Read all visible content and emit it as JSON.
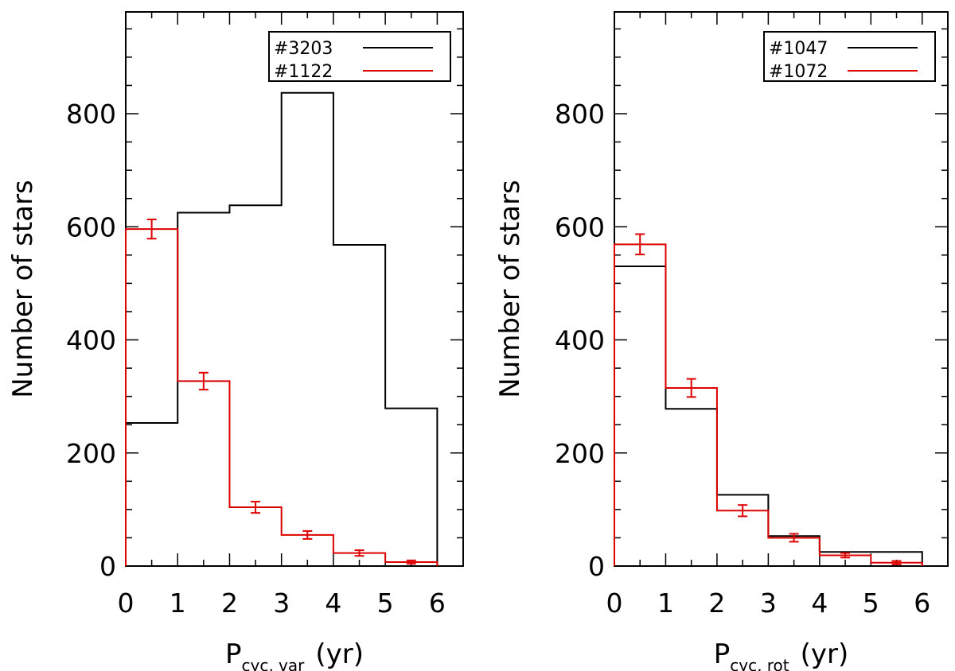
{
  "chart_data": [
    {
      "type": "histogram",
      "xlabel_main": "P",
      "xlabel_sub": "cyc, var",
      "xlabel_unit": "(yr)",
      "ylabel": "Number of stars",
      "xlim": [
        0,
        6.5
      ],
      "ylim": [
        0,
        980
      ],
      "xticks": [
        0,
        1,
        2,
        3,
        4,
        5,
        6
      ],
      "xtick_labels": [
        "0",
        "1",
        "2",
        "3",
        "4",
        "5",
        "6"
      ],
      "yticks": [
        0,
        200,
        400,
        600,
        800
      ],
      "ytick_labels": [
        "0",
        "200",
        "400",
        "600",
        "800"
      ],
      "legend_position": "top-right",
      "bin_edges": [
        0,
        1,
        2,
        3,
        4,
        5,
        6
      ],
      "series": [
        {
          "name": "#3203",
          "color": "#000000",
          "values": [
            253,
            625,
            638,
            837,
            568,
            279
          ],
          "errors": null
        },
        {
          "name": "#1122",
          "color": "#dd0000",
          "values": [
            596,
            327,
            104,
            55,
            23,
            7
          ],
          "errors": [
            17,
            15,
            10,
            7,
            5,
            3
          ]
        }
      ]
    },
    {
      "type": "histogram",
      "xlabel_main": "P",
      "xlabel_sub": "cyc, rot",
      "xlabel_unit": "(yr)",
      "ylabel": "Number of stars",
      "xlim": [
        0,
        6.5
      ],
      "ylim": [
        0,
        980
      ],
      "xticks": [
        0,
        1,
        2,
        3,
        4,
        5,
        6
      ],
      "xtick_labels": [
        "0",
        "1",
        "2",
        "3",
        "4",
        "5",
        "6"
      ],
      "yticks": [
        0,
        200,
        400,
        600,
        800
      ],
      "ytick_labels": [
        "0",
        "200",
        "400",
        "600",
        "800"
      ],
      "legend_position": "top-right",
      "bin_edges": [
        0,
        1,
        2,
        3,
        4,
        5,
        6
      ],
      "series": [
        {
          "name": "#1047",
          "color": "#000000",
          "values": [
            530,
            278,
            126,
            53,
            25,
            25
          ],
          "errors": null
        },
        {
          "name": "#1072",
          "color": "#dd0000",
          "values": [
            569,
            315,
            98,
            50,
            19,
            6
          ],
          "errors": [
            18,
            16,
            10,
            7,
            4,
            3
          ]
        }
      ]
    }
  ]
}
